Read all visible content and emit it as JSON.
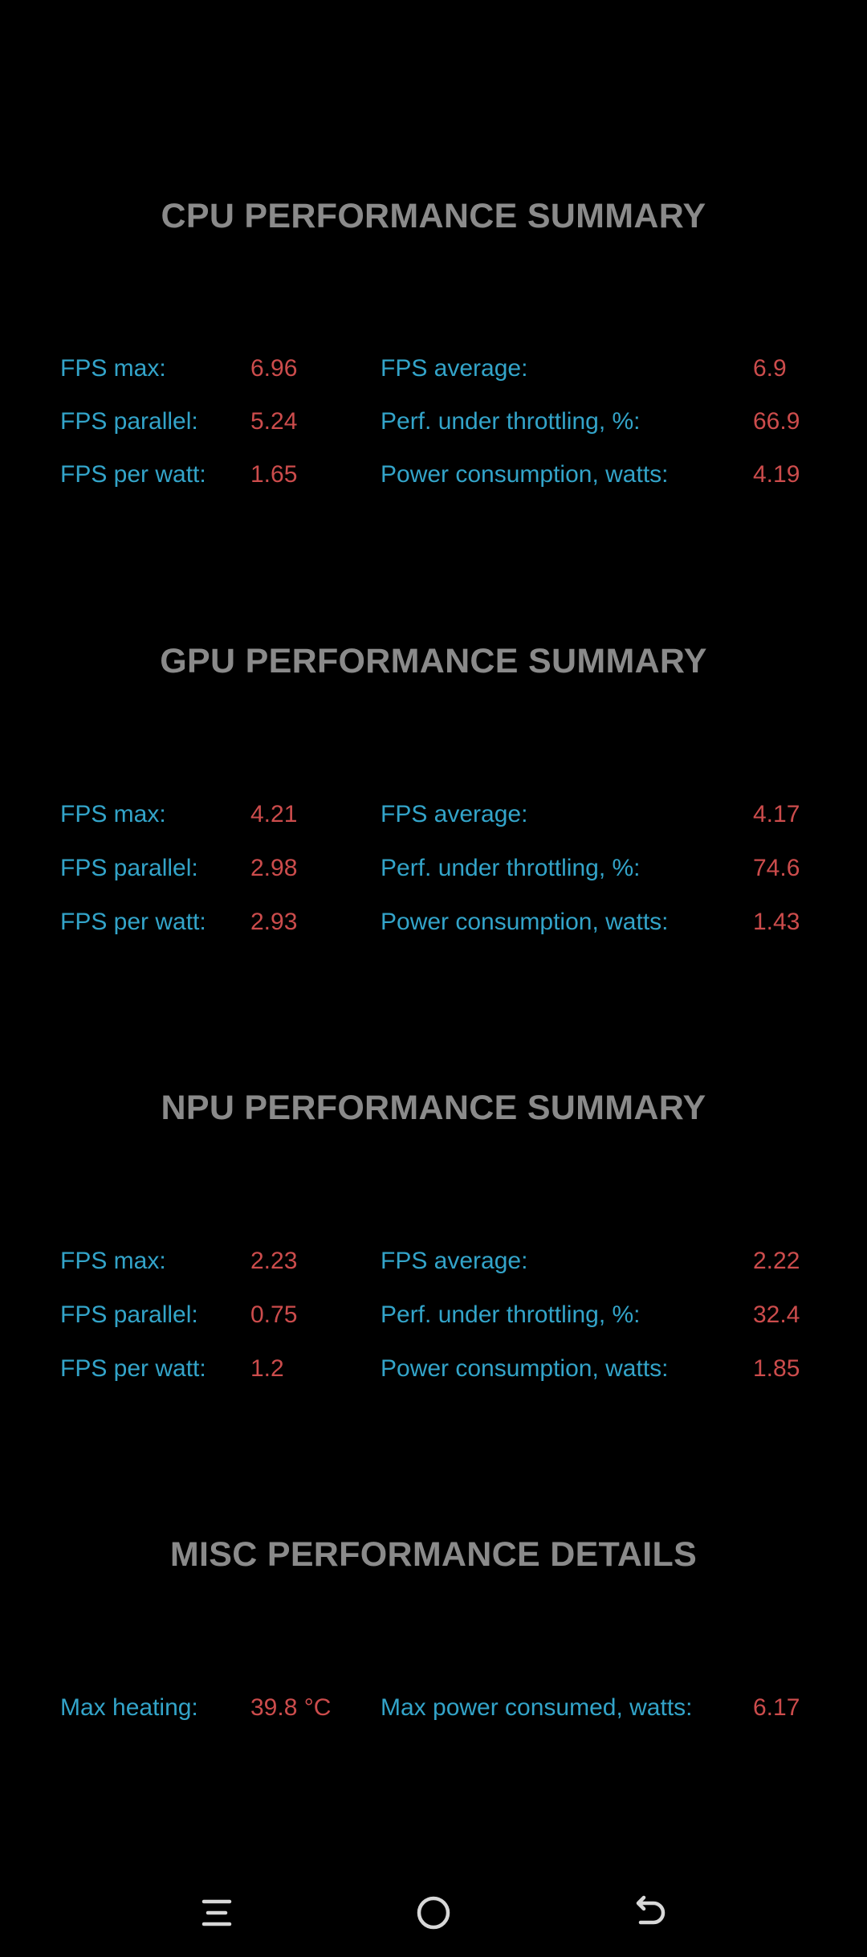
{
  "sections": [
    {
      "title": "CPU PERFORMANCE SUMMARY",
      "rows": [
        {
          "l1": "FPS max:",
          "v1": "6.96",
          "l2": "FPS average:",
          "v2": "6.9"
        },
        {
          "l1": "FPS parallel:",
          "v1": "5.24",
          "l2": "Perf. under throttling, %:",
          "v2": "66.9"
        },
        {
          "l1": "FPS per watt:",
          "v1": "1.65",
          "l2": "Power consumption, watts:",
          "v2": "4.19"
        }
      ]
    },
    {
      "title": "GPU PERFORMANCE SUMMARY",
      "rows": [
        {
          "l1": "FPS max:",
          "v1": "4.21",
          "l2": "FPS average:",
          "v2": "4.17"
        },
        {
          "l1": "FPS parallel:",
          "v1": "2.98",
          "l2": "Perf. under throttling, %:",
          "v2": "74.6"
        },
        {
          "l1": "FPS per watt:",
          "v1": "2.93",
          "l2": "Power consumption, watts:",
          "v2": "1.43"
        }
      ]
    },
    {
      "title": "NPU PERFORMANCE SUMMARY",
      "rows": [
        {
          "l1": "FPS max:",
          "v1": "2.23",
          "l2": "FPS average:",
          "v2": "2.22"
        },
        {
          "l1": "FPS parallel:",
          "v1": "0.75",
          "l2": "Perf. under throttling, %:",
          "v2": "32.4"
        },
        {
          "l1": "FPS per watt:",
          "v1": "1.2",
          "l2": "Power consumption, watts:",
          "v2": "1.85"
        }
      ]
    },
    {
      "title": "MISC PERFORMANCE DETAILS",
      "rows": [
        {
          "l1": "Max heating:",
          "v1": "39.8 °C",
          "l2": "Max power consumed, watts:",
          "v2": "6.17"
        }
      ]
    }
  ],
  "navbar": {
    "recents_icon": "menu-lines-icon",
    "home_icon": "circle-icon",
    "back_icon": "back-arrow-icon"
  },
  "colors": {
    "background": "#000000",
    "title": "#8a8a8a",
    "label": "#33a4c9",
    "value": "#cc4c4c",
    "nav_icon": "#d8d8d8"
  }
}
